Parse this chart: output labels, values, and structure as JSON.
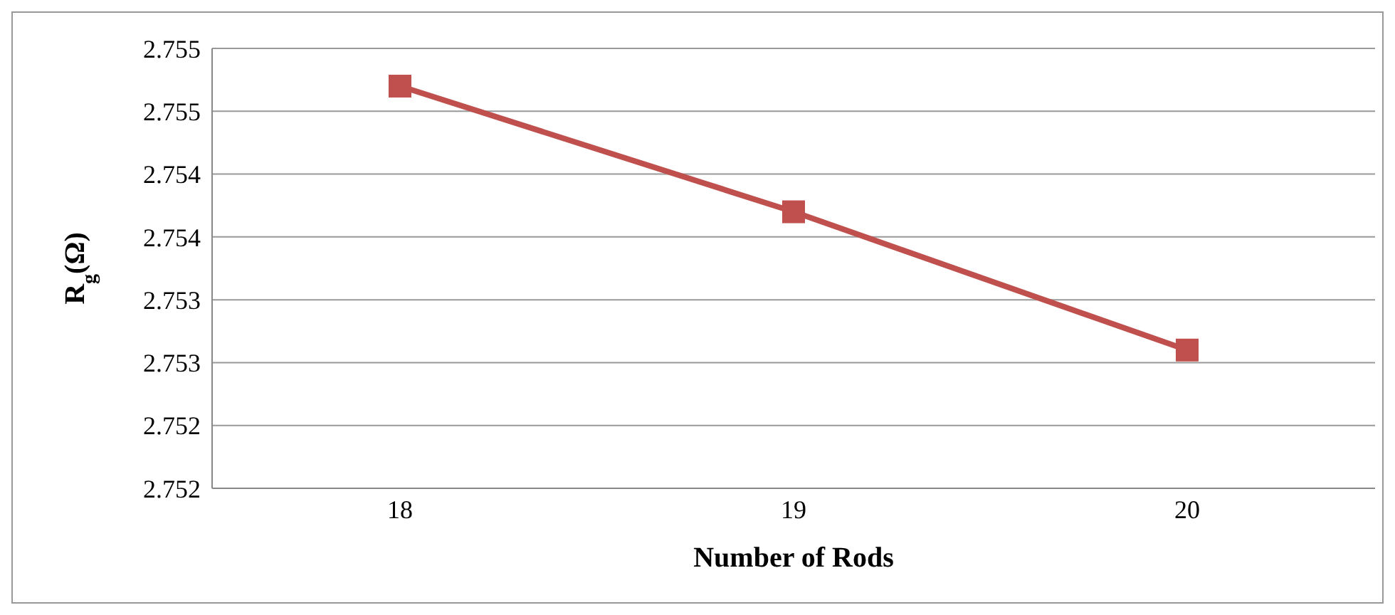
{
  "chart_data": {
    "type": "line",
    "xlabel": "Number of Rods",
    "ylabel": "R$_{g}$(Ω)",
    "categories": [
      "18",
      "19",
      "20"
    ],
    "series": [
      {
        "color": "#c0504d",
        "values": [
          2.7552,
          2.7542,
          2.7531
        ]
      }
    ],
    "ylim": [
      2.752,
      2.7555
    ],
    "yticks": [
      {
        "value": 2.752,
        "label": "2.752"
      },
      {
        "value": 2.7525,
        "label": "2.752"
      },
      {
        "value": 2.753,
        "label": "2.753"
      },
      {
        "value": 2.7535,
        "label": "2.753"
      },
      {
        "value": 2.754,
        "label": "2.754"
      },
      {
        "value": 2.7545,
        "label": "2.754"
      },
      {
        "value": 2.755,
        "label": "2.755"
      },
      {
        "value": 2.7555,
        "label": "2.755"
      }
    ],
    "grid": "y",
    "legend": false,
    "marker": "square",
    "line_style": "solid"
  }
}
